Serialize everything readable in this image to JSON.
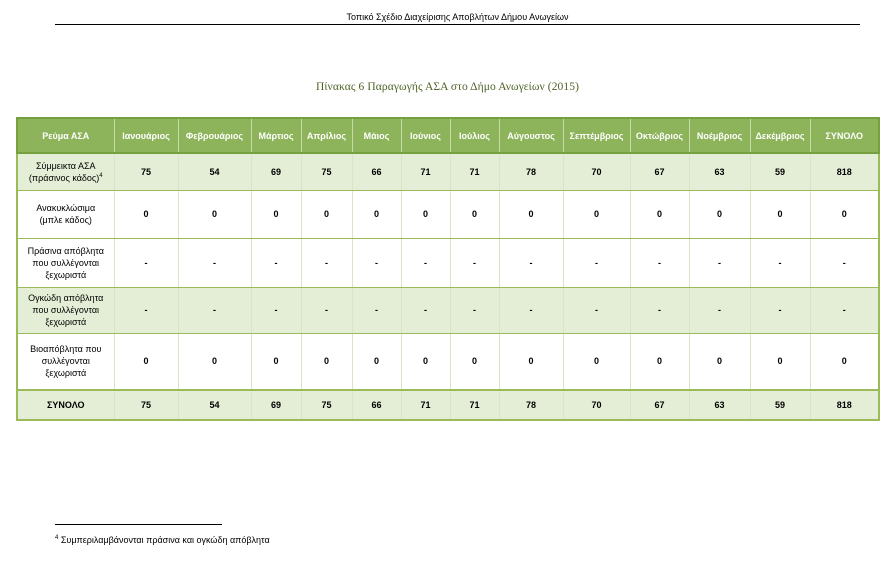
{
  "header": {
    "title": "Τοπικό Σχέδιο Διαχείρισης Αποβλήτων Δήμου Ανωγείων"
  },
  "caption": "Πίνακας 6 Παραγωγής ΑΣΑ στο Δήμο Ανωγείων (2015)",
  "table": {
    "columns": [
      "Ρεύμα ΑΣΑ",
      "Ιανουάριος",
      "Φεβρουάριος",
      "Μάρτιος",
      "Απρίλιος",
      "Μάιος",
      "Ιούνιος",
      "Ιούλιος",
      "Αύγουστος",
      "Σεπτέμβριος",
      "Οκτώβριος",
      "Νοέμβριος",
      "Δεκέμβριος",
      "ΣΥΝΟΛΟ"
    ],
    "rows": [
      {
        "label_lines": [
          "Σύμμεικτα ΑΣΑ",
          "(πράσινος κάδος)"
        ],
        "sup": "4",
        "values": [
          "75",
          "54",
          "69",
          "75",
          "66",
          "71",
          "71",
          "78",
          "70",
          "67",
          "63",
          "59",
          "818"
        ]
      },
      {
        "label_lines": [
          "Ανακυκλώσιμα",
          "(μπλε κάδος)"
        ],
        "values": [
          "0",
          "0",
          "0",
          "0",
          "0",
          "0",
          "0",
          "0",
          "0",
          "0",
          "0",
          "0",
          "0"
        ]
      },
      {
        "label_lines": [
          "Πράσινα απόβλητα",
          "που συλλέγονται",
          "ξεχωριστά"
        ],
        "values": [
          "-",
          "-",
          "-",
          "-",
          "-",
          "-",
          "-",
          "-",
          "-",
          "-",
          "-",
          "-",
          "-"
        ]
      },
      {
        "label_lines": [
          "Ογκώδη απόβλητα",
          "που συλλέγονται",
          "ξεχωριστά"
        ],
        "values": [
          "-",
          "-",
          "-",
          "-",
          "-",
          "-",
          "-",
          "-",
          "-",
          "-",
          "-",
          "-",
          "-"
        ]
      },
      {
        "label_lines": [
          "Βιοαπόβλητα που",
          "συλλέγονται",
          "ξεχωριστά"
        ],
        "values": [
          "0",
          "0",
          "0",
          "0",
          "0",
          "0",
          "0",
          "0",
          "0",
          "0",
          "0",
          "0",
          "0"
        ]
      },
      {
        "label_lines": [
          "ΣΥΝΟΛΟ"
        ],
        "values": [
          "75",
          "54",
          "69",
          "75",
          "66",
          "71",
          "71",
          "78",
          "70",
          "67",
          "63",
          "59",
          "818"
        ]
      }
    ]
  },
  "footnote": {
    "number": "4",
    "text": "Συμπεριλαμβάνονται πράσινα και ογκώδη απόβλητα"
  }
}
